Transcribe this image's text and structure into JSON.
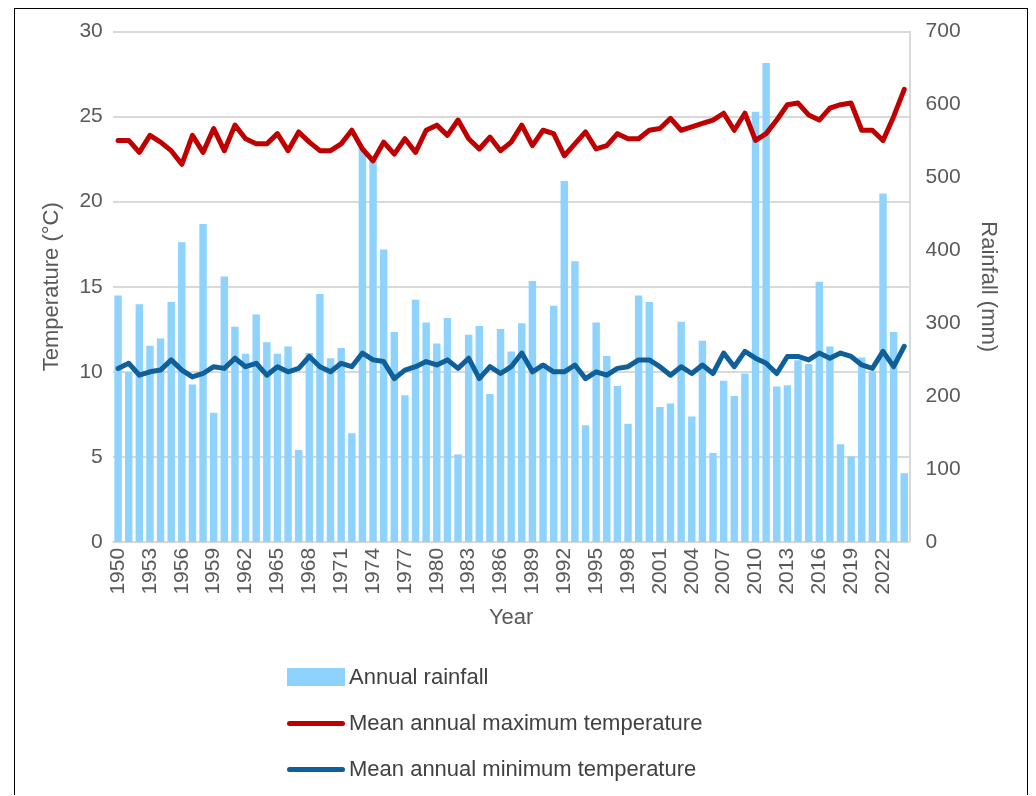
{
  "chart_data": {
    "type": "bar",
    "xlabel": "Year",
    "ylabel": "Temperature (°C)",
    "y2label": "Rainfall (mm)",
    "categories": [
      "1950",
      null,
      null,
      "1953",
      null,
      null,
      "1956",
      null,
      null,
      "1959",
      null,
      null,
      "1962",
      null,
      null,
      "1965",
      null,
      null,
      "1968",
      null,
      null,
      "1971",
      null,
      null,
      "1974",
      null,
      null,
      "1977",
      null,
      null,
      "1980",
      null,
      null,
      "1983",
      null,
      null,
      "1986",
      null,
      null,
      "1989",
      null,
      null,
      "1992",
      null,
      null,
      "1995",
      null,
      null,
      "1998",
      null,
      null,
      "2001",
      null,
      null,
      "2004",
      null,
      null,
      "2007",
      null,
      null,
      "2010",
      null,
      null,
      "2013",
      null,
      null,
      "2016",
      null,
      null,
      "2019",
      null,
      null,
      "2022",
      null,
      null
    ],
    "series": [
      {
        "name": "Annual rainfall",
        "axis": "y2",
        "color": "#8ed3fd",
        "values": [
          338,
          233,
          326,
          269,
          279,
          329,
          411,
          216,
          436,
          177,
          364,
          295,
          258,
          312,
          274,
          258,
          268,
          126,
          259,
          340,
          252,
          266,
          149,
          540,
          526,
          401,
          288,
          201,
          332,
          301,
          272,
          307,
          120,
          284,
          296,
          203,
          292,
          261,
          300,
          358,
          245,
          324,
          495,
          385,
          160,
          301,
          255,
          214,
          162,
          338,
          329,
          185,
          190,
          302,
          172,
          276,
          122,
          221,
          200,
          231,
          590,
          657,
          213,
          215,
          249,
          244,
          357,
          268,
          134,
          117,
          253,
          234,
          478,
          288,
          94
        ]
      },
      {
        "name": "Mean annual maximum temperature",
        "type": "line",
        "color": "#c00000",
        "values": [
          23.6,
          23.6,
          22.9,
          23.9,
          23.5,
          23.0,
          22.2,
          23.9,
          22.9,
          24.3,
          23.0,
          24.5,
          23.7,
          23.4,
          23.4,
          24.0,
          23.0,
          24.1,
          23.5,
          23.0,
          23.0,
          23.4,
          24.2,
          23.1,
          22.4,
          23.5,
          22.8,
          23.7,
          22.9,
          24.2,
          24.5,
          23.9,
          24.8,
          23.7,
          23.1,
          23.8,
          23.0,
          23.5,
          24.5,
          23.3,
          24.2,
          24.0,
          22.7,
          23.4,
          24.1,
          23.1,
          23.3,
          24.0,
          23.7,
          23.7,
          24.2,
          24.3,
          24.9,
          24.2,
          24.4,
          24.6,
          24.8,
          25.2,
          24.2,
          25.2,
          23.6,
          24.0,
          24.8,
          25.7,
          25.8,
          25.1,
          24.8,
          25.5,
          25.7,
          25.8,
          24.2,
          24.2,
          23.6,
          25.0,
          26.6
        ]
      },
      {
        "name": "Mean annual minimum temperature",
        "type": "line",
        "color": "#0f5f9a",
        "values": [
          10.2,
          10.5,
          9.8,
          10.0,
          10.1,
          10.7,
          10.1,
          9.7,
          9.9,
          10.3,
          10.2,
          10.8,
          10.3,
          10.5,
          9.8,
          10.3,
          10.0,
          10.2,
          10.9,
          10.3,
          10.0,
          10.5,
          10.3,
          11.1,
          10.7,
          10.6,
          9.6,
          10.1,
          10.3,
          10.6,
          10.4,
          10.7,
          10.2,
          10.8,
          9.6,
          10.3,
          9.9,
          10.3,
          11.1,
          10.0,
          10.4,
          10.0,
          10.0,
          10.4,
          9.6,
          10.0,
          9.8,
          10.2,
          10.3,
          10.7,
          10.7,
          10.3,
          9.8,
          10.3,
          9.9,
          10.4,
          9.9,
          11.1,
          10.3,
          11.2,
          10.8,
          10.5,
          9.9,
          10.9,
          10.9,
          10.7,
          11.1,
          10.8,
          11.1,
          10.9,
          10.4,
          10.2,
          11.2,
          10.3,
          11.5
        ]
      }
    ],
    "ylim": [
      0,
      30
    ],
    "yticks": [
      0,
      5,
      10,
      15,
      20,
      25,
      30
    ],
    "y2lim": [
      0,
      700
    ],
    "y2ticks": [
      0,
      100,
      200,
      300,
      400,
      500,
      600,
      700
    ],
    "grid": "y",
    "legend": "bottom",
    "marker": "none",
    "line_style": "solid"
  }
}
